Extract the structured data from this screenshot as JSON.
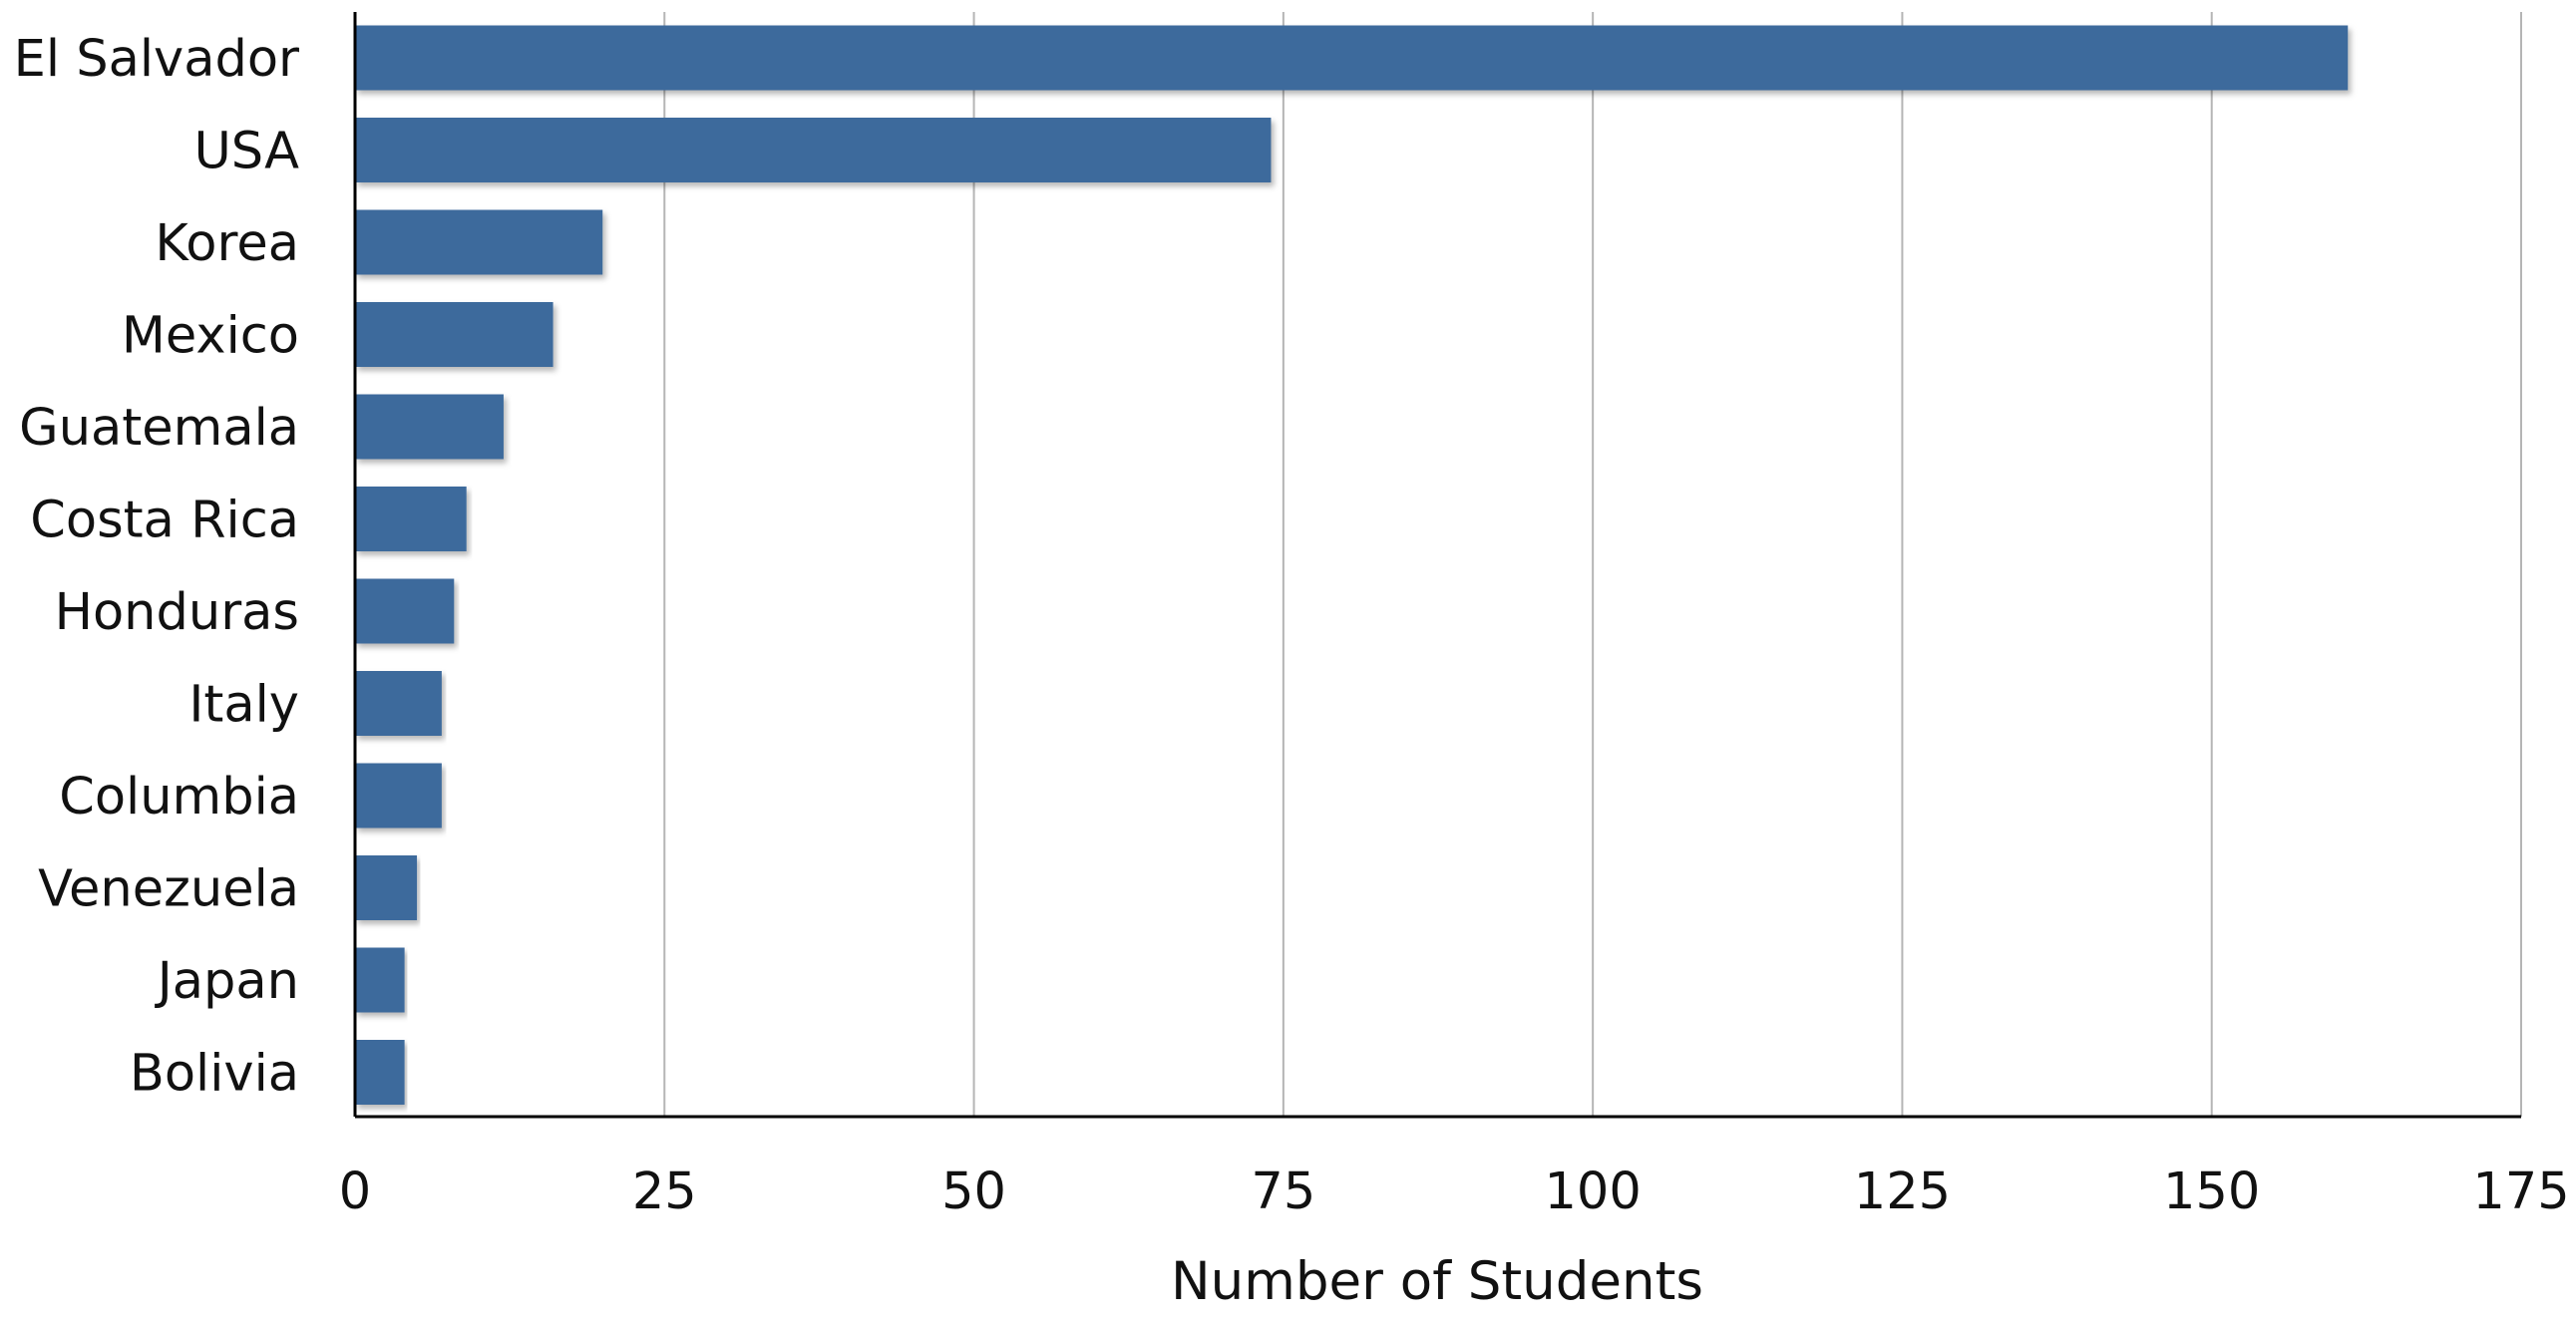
{
  "chart_data": {
    "type": "bar",
    "orientation": "horizontal",
    "categories": [
      "El Salvador",
      "USA",
      "Korea",
      "Mexico",
      "Guatemala",
      "Costa Rica",
      "Honduras",
      "Italy",
      "Columbia",
      "Venezuela",
      "Japan",
      "Bolivia"
    ],
    "values": [
      161,
      74,
      20,
      16,
      12,
      9,
      8,
      7,
      7,
      5,
      4,
      4
    ],
    "xlabel": "Number of Students",
    "ylabel": "",
    "xlim": [
      0,
      175
    ],
    "xticks": [
      0,
      25,
      50,
      75,
      100,
      125,
      150,
      175
    ],
    "grid": "vertical",
    "legend": "none",
    "bar_color": "#3d6b9c",
    "grid_color": "#b5b5b5"
  }
}
